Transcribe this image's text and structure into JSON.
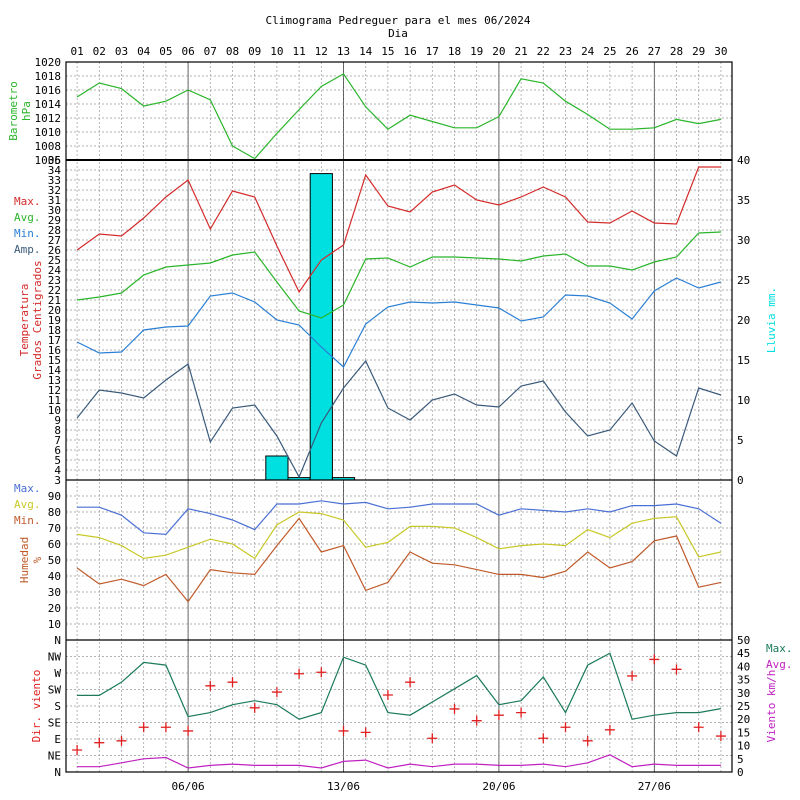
{
  "header": {
    "title": "Climograma Pedreguer para el mes 06/2024",
    "x_caption": "Dia"
  },
  "days": [
    "01",
    "02",
    "03",
    "04",
    "05",
    "06",
    "07",
    "08",
    "09",
    "10",
    "11",
    "12",
    "13",
    "14",
    "15",
    "16",
    "17",
    "18",
    "19",
    "20",
    "21",
    "22",
    "23",
    "24",
    "25",
    "26",
    "27",
    "28",
    "29",
    "30"
  ],
  "week_labels": [
    {
      "day": 6,
      "label": "06/06"
    },
    {
      "day": 13,
      "label": "13/06"
    },
    {
      "day": 20,
      "label": "20/06"
    },
    {
      "day": 27,
      "label": "27/06"
    }
  ],
  "colors": {
    "pressure": "#2ab52a",
    "max": "#d42a2a",
    "avg": "#2ab52a",
    "min": "#2a7fd4",
    "amp": "#3a5a7a",
    "rain": "#00e0e0",
    "hum_max": "#4a6fd4",
    "hum_avg": "#c8c82a",
    "hum_min": "#c05a2a",
    "wind_max": "#1a7a5a",
    "wind_avg": "#c020c0",
    "wind_dir": "#e02020"
  },
  "chart_data": [
    {
      "type": "line",
      "title": "",
      "ylabel": [
        "Barometro",
        "hPa"
      ],
      "ylim": [
        1006,
        1020
      ],
      "yticks": [
        "1006",
        "1008",
        "1010",
        "1012",
        "1014",
        "1016",
        "1018",
        "1020"
      ],
      "series": [
        {
          "values": [
            1015,
            1017,
            1016.2,
            1013.7,
            1014.4,
            1016,
            1014.6,
            1008,
            1006.2,
            1009.8,
            1013.2,
            1016.5,
            1018.3,
            1013.6,
            1010.4,
            1012.4,
            1011.5,
            1010.6,
            1010.6,
            1012.2,
            1017.6,
            1017,
            1014.4,
            1012.5,
            1010.4,
            1010.4,
            1010.6,
            1011.8,
            1011.2,
            1011.8
          ]
        }
      ]
    },
    {
      "type": "line",
      "title": "",
      "ylabel": [
        "Temperatura",
        "Grados Centigrados"
      ],
      "y2label": "Lluvia mm.",
      "ylim": [
        3,
        35
      ],
      "y2lim": [
        0,
        40
      ],
      "yticks": [
        "3",
        "4",
        "5",
        "6",
        "7",
        "8",
        "9",
        "10",
        "11",
        "12",
        "13",
        "14",
        "15",
        "16",
        "17",
        "18",
        "19",
        "20",
        "21",
        "22",
        "23",
        "24",
        "25",
        "26",
        "27",
        "28",
        "29",
        "30",
        "31",
        "32",
        "33",
        "34",
        "35"
      ],
      "y2ticks": [
        "0",
        "5",
        "10",
        "15",
        "20",
        "25",
        "30",
        "35",
        "40"
      ],
      "legend": [
        "Max.",
        "Avg.",
        "Min.",
        "Amp."
      ],
      "series": [
        {
          "name": "Max.",
          "values": [
            26,
            27.6,
            27.4,
            29.2,
            31.3,
            33,
            28.1,
            31.9,
            31.3,
            26.4,
            21.8,
            25,
            26.5,
            33.5,
            30.4,
            29.8,
            31.8,
            32.5,
            31,
            30.5,
            31.3,
            32.3,
            31.3,
            28.8,
            28.7,
            29.9,
            28.7,
            28.6,
            34.3,
            34.3
          ]
        },
        {
          "name": "Avg.",
          "values": [
            21,
            21.3,
            21.7,
            23.5,
            24.3,
            24.5,
            24.7,
            25.5,
            25.8,
            22.8,
            19.9,
            19.2,
            20.5,
            25.1,
            25.2,
            24.3,
            25.3,
            25.3,
            25.2,
            25.1,
            24.9,
            25.4,
            25.6,
            24.4,
            24.4,
            24,
            24.8,
            25.3,
            27.7,
            27.8
          ]
        },
        {
          "name": "Min.",
          "values": [
            16.8,
            15.7,
            15.8,
            18,
            18.3,
            18.4,
            21.4,
            21.7,
            20.8,
            19,
            18.5,
            16.3,
            14.3,
            18.6,
            20.3,
            20.8,
            20.7,
            20.8,
            20.5,
            20.2,
            18.9,
            19.3,
            21.5,
            21.4,
            20.7,
            19.1,
            21.9,
            23.2,
            22.2,
            22.8
          ]
        },
        {
          "name": "Amp.",
          "values": [
            9.2,
            12,
            11.7,
            11.2,
            13,
            14.6,
            6.8,
            10.2,
            10.5,
            7.4,
            3.3,
            8.7,
            12.2,
            14.9,
            10.2,
            9,
            11,
            11.6,
            10.5,
            10.3,
            12.4,
            12.9,
            9.8,
            7.4,
            8,
            10.7,
            6.9,
            5.4,
            12.2,
            11.5
          ]
        }
      ],
      "rain": [
        0,
        0,
        0,
        0,
        0,
        0,
        0,
        0,
        0,
        3,
        0.3,
        38.3,
        0.3,
        0,
        0,
        0,
        0,
        0,
        0,
        0,
        0,
        0,
        0,
        0,
        0,
        0,
        0,
        0,
        0,
        0
      ]
    },
    {
      "type": "line",
      "title": "",
      "ylabel": [
        "Humedad",
        "%"
      ],
      "ylim": [
        0,
        100
      ],
      "yticks": [
        "10",
        "20",
        "30",
        "40",
        "50",
        "60",
        "70",
        "80",
        "90"
      ],
      "legend": [
        "Max.",
        "Avg.",
        "Min."
      ],
      "series": [
        {
          "name": "Max.",
          "values": [
            83,
            83,
            78,
            67,
            66,
            82,
            79,
            75,
            69,
            85,
            85,
            87,
            85,
            86,
            82,
            83,
            85,
            85,
            85,
            78,
            82,
            81,
            80,
            82,
            80,
            84,
            84,
            85,
            82,
            73
          ]
        },
        {
          "name": "Avg.",
          "values": [
            66,
            64,
            59,
            51,
            53,
            58,
            63,
            60,
            51,
            72,
            80,
            79,
            75,
            58,
            61,
            71,
            71,
            70,
            64,
            57,
            59,
            60,
            59,
            69,
            64,
            73,
            76,
            77,
            52,
            55
          ]
        },
        {
          "name": "Min.",
          "values": [
            45,
            35,
            38,
            34,
            41,
            24,
            44,
            42,
            41,
            59,
            76,
            55,
            59,
            31,
            36,
            55,
            48,
            47,
            44,
            41,
            41,
            39,
            43,
            55,
            45,
            49,
            62,
            65,
            33,
            36
          ]
        }
      ]
    },
    {
      "type": "line",
      "title": "",
      "ylabel": "Dir. viento",
      "y2label": "Viento km/h",
      "ylim": [
        0,
        360
      ],
      "y2lim": [
        0,
        50
      ],
      "yticks": [
        "N",
        "NE",
        "E",
        "SE",
        "S",
        "SW",
        "W",
        "NW",
        "N"
      ],
      "y2ticks": [
        "0",
        "5",
        "10",
        "15",
        "20",
        "25",
        "30",
        "35",
        "40",
        "45",
        "50"
      ],
      "legend": [
        "Max.",
        "Avg."
      ],
      "series": [
        {
          "name": "Max.",
          "values": [
            29,
            29,
            34,
            41.5,
            40.5,
            21,
            22.5,
            25.5,
            27,
            25.5,
            20,
            22.5,
            43.5,
            40.5,
            22.5,
            21.5,
            26.5,
            31.5,
            36.5,
            25.5,
            27,
            36,
            22.5,
            40.5,
            45,
            20,
            21.5,
            22.5,
            22.5,
            24
          ]
        },
        {
          "name": "Avg.",
          "values": [
            2,
            2,
            3.5,
            5,
            5.5,
            1.5,
            2.5,
            3,
            2.5,
            2.5,
            2.5,
            1.5,
            4,
            4.5,
            1.5,
            3,
            2,
            3,
            3,
            2.5,
            2.5,
            3,
            2,
            3.5,
            6.5,
            2,
            3,
            2.5,
            2.5,
            2.5
          ]
        }
      ],
      "direction": [
        60,
        80,
        85,
        122,
        122,
        112,
        235,
        245,
        175,
        218,
        268,
        272,
        112,
        108,
        210,
        245,
        92,
        172,
        140,
        155,
        162,
        92,
        122,
        85,
        115,
        262,
        307,
        280,
        122,
        98
      ]
    }
  ]
}
